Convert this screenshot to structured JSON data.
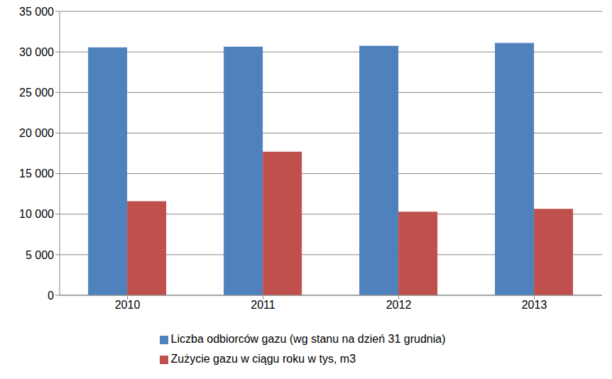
{
  "chart_data": {
    "type": "bar",
    "categories": [
      "2010",
      "2011",
      "2012",
      "2013"
    ],
    "series": [
      {
        "name": "Liczba odbiorców gazu (wg stanu na dzień 31 grudnia)",
        "color": "#4f81bd",
        "values": [
          30550,
          30650,
          30750,
          31100
        ]
      },
      {
        "name": "Zużycie gazu w ciągu roku w tys, m3",
        "color": "#c0504d",
        "values": [
          11600,
          17700,
          10300,
          10650
        ]
      }
    ],
    "ylim": [
      0,
      35000
    ],
    "yticks": [
      0,
      {
        "value": 5000,
        "label": "5 000"
      },
      {
        "value": 10000,
        "label": "10 000"
      },
      {
        "value": 15000,
        "label": "15 000"
      },
      {
        "value": 20000,
        "label": "20 000"
      },
      {
        "value": 25000,
        "label": "25 000"
      },
      {
        "value": 30000,
        "label": "30 000"
      },
      {
        "value": 35000,
        "label": "35 000"
      }
    ],
    "grid": true,
    "legend": "bottom"
  }
}
